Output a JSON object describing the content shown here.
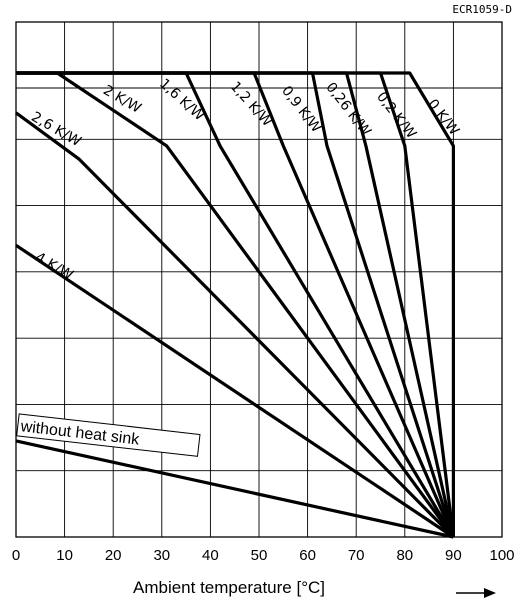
{
  "chart_data": {
    "type": "line",
    "title": "",
    "figure_code": "ECR1059-D",
    "xlabel": "Ambient temperature [°C]",
    "ylabel": "",
    "xlim": [
      0,
      100
    ],
    "ylim": [
      0,
      7
    ],
    "x_ticks": [
      "0",
      "10",
      "20",
      "30",
      "40",
      "50",
      "60",
      "70",
      "80",
      "90",
      "100"
    ],
    "grid": true,
    "series": [
      {
        "name": "0 K/W",
        "points": [
          [
            0,
            7
          ],
          [
            81,
            7
          ],
          [
            90,
            5.9
          ],
          [
            90,
            0
          ]
        ]
      },
      {
        "name": "0,2 K/W",
        "points": [
          [
            0,
            7
          ],
          [
            75,
            7
          ],
          [
            80,
            5.9
          ],
          [
            90,
            0
          ]
        ]
      },
      {
        "name": "0,26 K/W",
        "points": [
          [
            0,
            7
          ],
          [
            68,
            7
          ],
          [
            72,
            5.9
          ],
          [
            90,
            0
          ]
        ]
      },
      {
        "name": "0,9 K/W",
        "points": [
          [
            0,
            7
          ],
          [
            61,
            7
          ],
          [
            64,
            5.9
          ],
          [
            90,
            0
          ]
        ]
      },
      {
        "name": "1,2 K/W",
        "points": [
          [
            0,
            7
          ],
          [
            49,
            7
          ],
          [
            55,
            5.9
          ],
          [
            90,
            0
          ]
        ]
      },
      {
        "name": "1,6 K/W",
        "points": [
          [
            0,
            7
          ],
          [
            35,
            7
          ],
          [
            42,
            5.9
          ],
          [
            90,
            0
          ]
        ]
      },
      {
        "name": "2 K/W",
        "points": [
          [
            0,
            7
          ],
          [
            8.5,
            7
          ],
          [
            31,
            5.9
          ],
          [
            90,
            0
          ]
        ]
      },
      {
        "name": "2,6 K/W",
        "points": [
          [
            0,
            6.4
          ],
          [
            13,
            5.7
          ],
          [
            90,
            0
          ]
        ]
      },
      {
        "name": "4 K/W",
        "points": [
          [
            0,
            4.4
          ],
          [
            90,
            0
          ]
        ]
      },
      {
        "name": "without heat sink",
        "points": [
          [
            0,
            1.45
          ],
          [
            90,
            0
          ]
        ]
      }
    ]
  }
}
